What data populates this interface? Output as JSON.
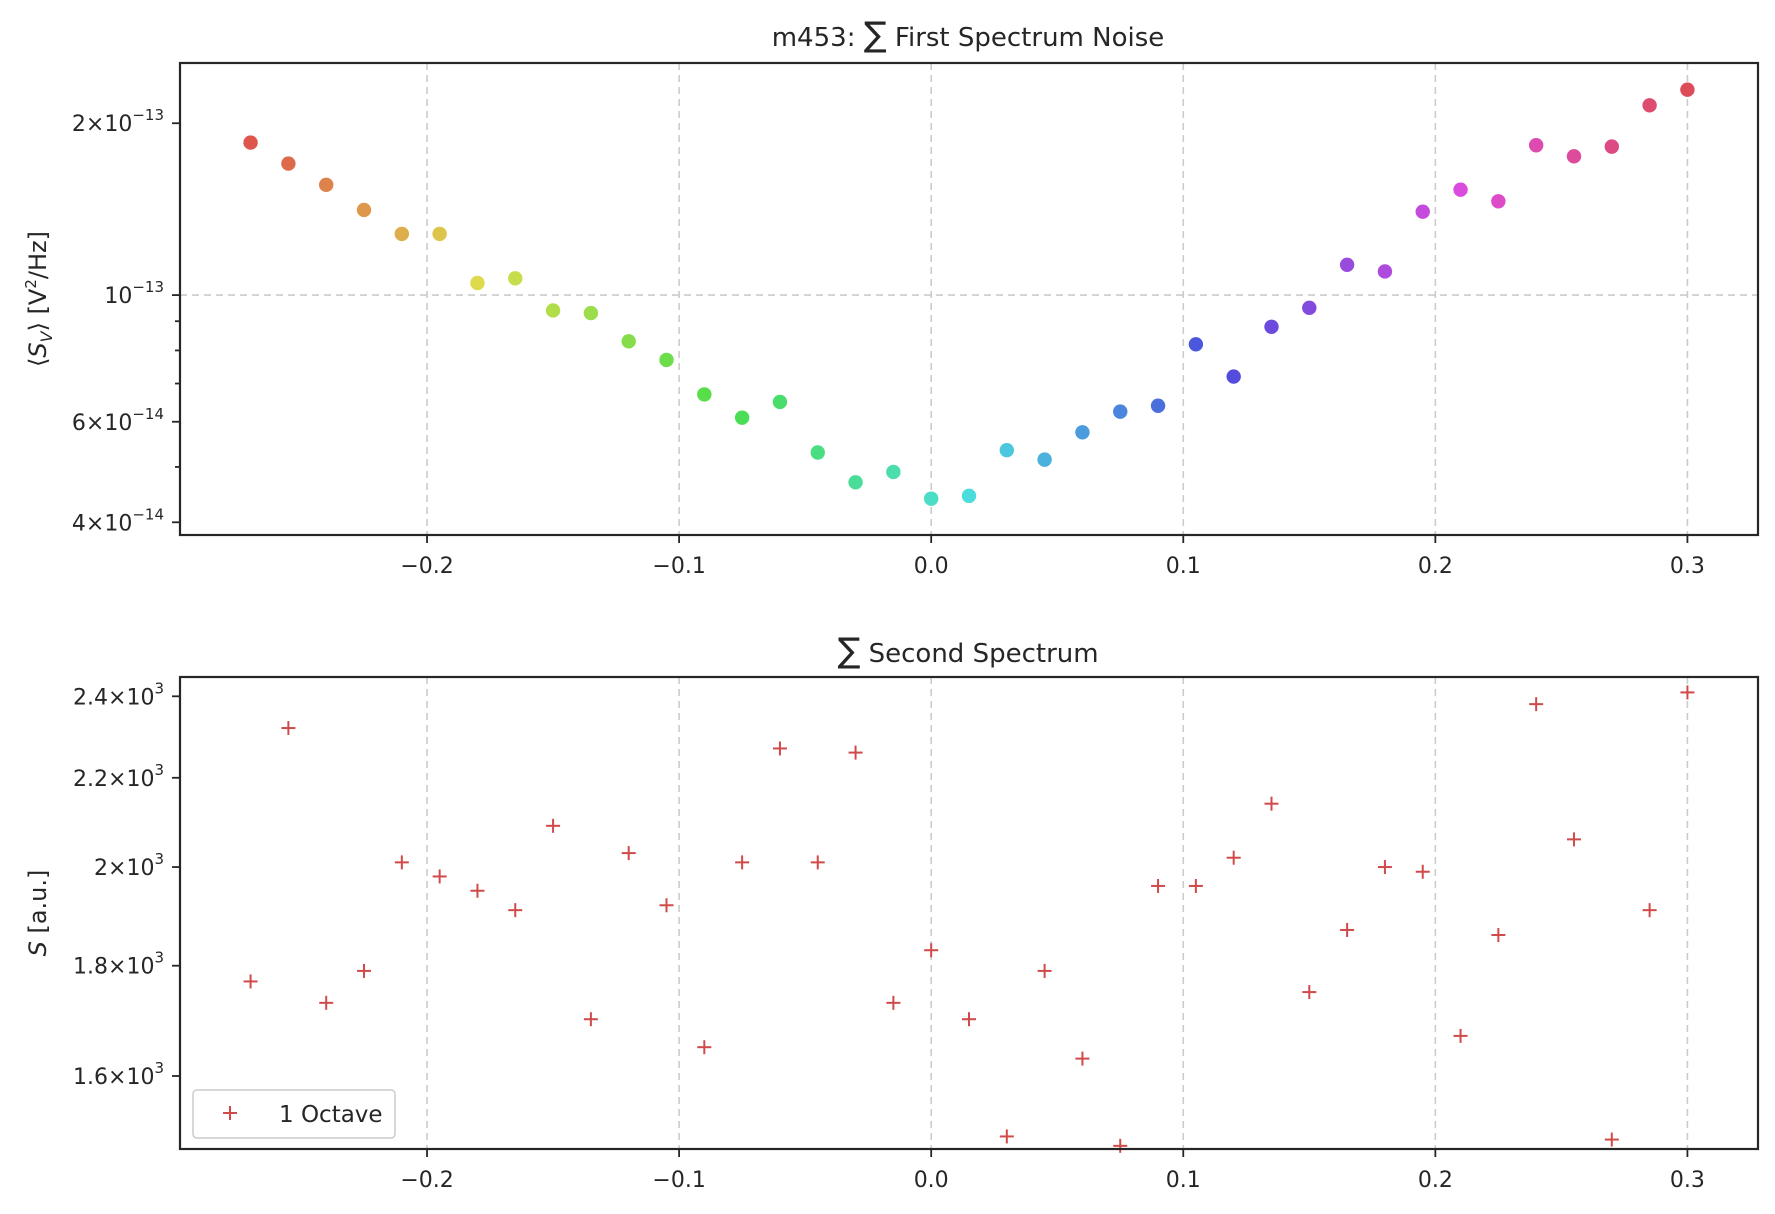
{
  "chart_data": [
    {
      "type": "scatter",
      "title_parts": [
        "m453: ",
        "∑",
        " First Spectrum Noise"
      ],
      "ylabel": "⟨S_V⟩ [V²/Hz]",
      "yscale": "log",
      "xlim": [
        -0.298,
        0.328
      ],
      "ylim": [
        3.8e-14,
        2.55e-13
      ],
      "grid": true,
      "x_ticks": [
        "−0.2",
        "−0.1",
        "0.0",
        "0.1",
        "0.2",
        "0.3"
      ],
      "x_tick_values": [
        -0.2,
        -0.1,
        0.0,
        0.1,
        0.2,
        0.3
      ],
      "y_major_ticks": [
        {
          "value": 2e-13,
          "mantissa": "2",
          "exponent": "−13"
        },
        {
          "value": 1e-13,
          "mantissa": "",
          "exponent": "−13"
        },
        {
          "value": 6e-14,
          "mantissa": "6",
          "exponent": "−14"
        },
        {
          "value": 4e-14,
          "mantissa": "4",
          "exponent": "−14"
        }
      ],
      "y_minor_ticks": [
        3e-13,
        9e-14,
        8e-14,
        7e-14,
        5e-14
      ],
      "colormap": "hue gradient red→yellow→green→cyan→blue→purple→magenta→red",
      "x": [
        -0.27,
        -0.255,
        -0.24,
        -0.225,
        -0.21,
        -0.195,
        -0.18,
        -0.165,
        -0.15,
        -0.135,
        -0.12,
        -0.105,
        -0.09,
        -0.075,
        -0.06,
        -0.045,
        -0.03,
        -0.015,
        0.0,
        0.015,
        0.03,
        0.045,
        0.06,
        0.075,
        0.09,
        0.105,
        0.12,
        0.135,
        0.15,
        0.165,
        0.18,
        0.195,
        0.21,
        0.225,
        0.24,
        0.255,
        0.27,
        0.285,
        0.3
      ],
      "y": [
        1.85e-13,
        1.7e-13,
        1.56e-13,
        1.41e-13,
        1.28e-13,
        1.28e-13,
        1.05e-13,
        1.07e-13,
        9.4e-14,
        9.3e-14,
        8.3e-14,
        7.7e-14,
        6.7e-14,
        6.1e-14,
        6.5e-14,
        5.3e-14,
        4.7e-14,
        4.9e-14,
        4.4e-14,
        4.45e-14,
        5.35e-14,
        5.15e-14,
        5.75e-14,
        6.25e-14,
        6.4e-14,
        8.2e-14,
        7.2e-14,
        8.8e-14,
        9.5e-14,
        1.13e-13,
        1.1e-13,
        1.4e-13,
        1.53e-13,
        1.46e-13,
        1.83e-13,
        1.75e-13,
        1.82e-13,
        2.15e-13,
        2.29e-13
      ]
    },
    {
      "type": "scatter",
      "title_parts": [
        "∑",
        " Second Spectrum"
      ],
      "ylabel": "S [a.u.]",
      "yscale": "log",
      "xlim": [
        -0.298,
        0.328
      ],
      "ylim": [
        1480.0,
        2450.0
      ],
      "grid": true,
      "x_ticks": [
        "−0.2",
        "−0.1",
        "0.0",
        "0.1",
        "0.2",
        "0.3"
      ],
      "x_tick_values": [
        -0.2,
        -0.1,
        0.0,
        0.1,
        0.2,
        0.3
      ],
      "y_major_ticks": [
        {
          "value": 2400,
          "mantissa": "2.4",
          "exponent": "3"
        },
        {
          "value": 2200,
          "mantissa": "2.2",
          "exponent": "3"
        },
        {
          "value": 2000,
          "mantissa": "2",
          "exponent": "3"
        },
        {
          "value": 1800,
          "mantissa": "1.8",
          "exponent": "3"
        },
        {
          "value": 1600,
          "mantissa": "1.6",
          "exponent": "3"
        }
      ],
      "marker_color": "#d04a4a",
      "legend": {
        "position": "lower-left",
        "label": "1 Octave"
      },
      "series": [
        {
          "name": "1 Octave",
          "x": [
            -0.27,
            -0.255,
            -0.24,
            -0.225,
            -0.21,
            -0.195,
            -0.18,
            -0.165,
            -0.15,
            -0.135,
            -0.12,
            -0.105,
            -0.09,
            -0.075,
            -0.06,
            -0.045,
            -0.03,
            -0.015,
            0.0,
            0.015,
            0.03,
            0.045,
            0.06,
            0.075,
            0.09,
            0.105,
            0.12,
            0.135,
            0.15,
            0.165,
            0.18,
            0.195,
            0.21,
            0.225,
            0.24,
            0.255,
            0.27,
            0.285,
            0.3
          ],
          "y": [
            1770,
            2320,
            1730,
            1790,
            2010,
            1980,
            1950,
            1910,
            2090,
            1700,
            2030,
            1920,
            1650,
            2010,
            2270,
            2010,
            2260,
            1730,
            1830,
            1700,
            1500,
            1790,
            1630,
            1485,
            1960,
            1960,
            2020,
            2140,
            1750,
            1870,
            2000,
            1990,
            1670,
            1860,
            2380,
            2060,
            1495,
            1910,
            2410
          ]
        }
      ]
    }
  ]
}
